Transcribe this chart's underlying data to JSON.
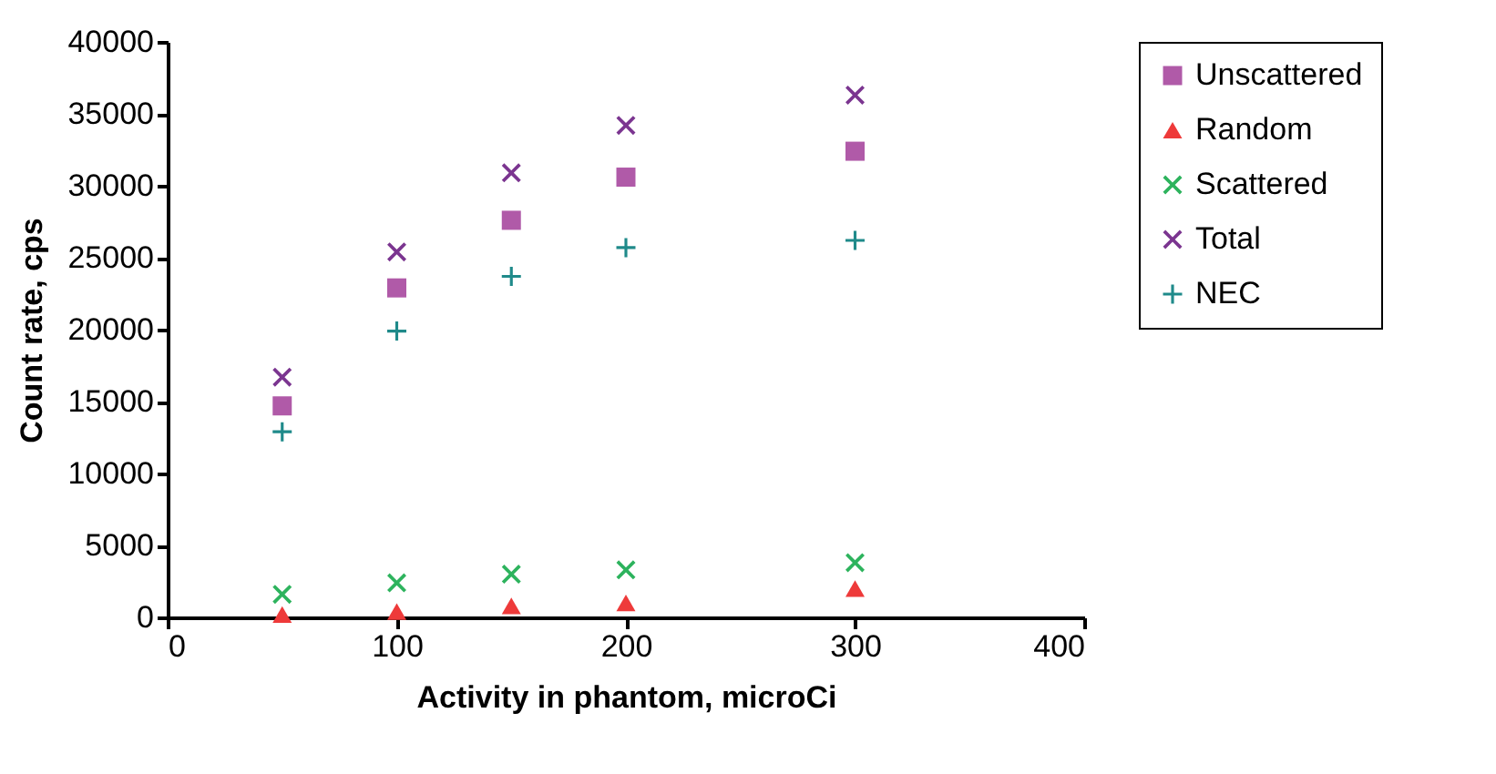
{
  "chart_data": {
    "type": "scatter",
    "xlabel": "Activity in phantom, microCi",
    "ylabel": "Count rate, cps",
    "x": [
      50,
      100,
      150,
      200,
      300
    ],
    "series": [
      {
        "name": "Unscattered",
        "color": "#b05aa8",
        "marker": "square",
        "values": [
          14700,
          22900,
          27600,
          30600,
          32400
        ]
      },
      {
        "name": "Random",
        "color": "#ee3a3a",
        "marker": "triangle",
        "values": [
          200,
          400,
          800,
          1000,
          2000
        ]
      },
      {
        "name": "Scattered",
        "color": "#2db35d",
        "marker": "x",
        "values": [
          1600,
          2400,
          3000,
          3300,
          3800
        ]
      },
      {
        "name": "Total",
        "color": "#7b3590",
        "marker": "x",
        "values": [
          16700,
          25400,
          30900,
          34200,
          36300
        ]
      },
      {
        "name": "NEC",
        "color": "#1f8a8a",
        "marker": "cross",
        "values": [
          12900,
          19900,
          23700,
          25700,
          26200
        ]
      }
    ],
    "xlim": [
      0,
      400
    ],
    "xticks": [
      0,
      100,
      200,
      300,
      400
    ],
    "ylim": [
      0,
      40000
    ],
    "yticks": [
      0,
      5000,
      10000,
      15000,
      20000,
      25000,
      30000,
      35000,
      40000
    ],
    "grid": false,
    "legend": "right"
  }
}
